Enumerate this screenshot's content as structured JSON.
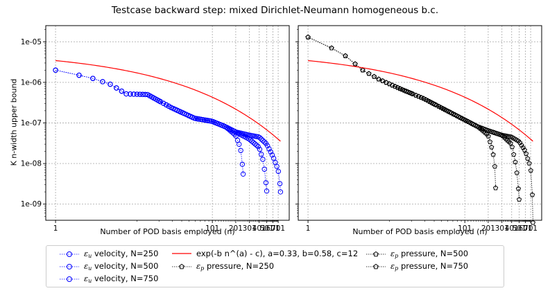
{
  "title": "Testcase backward step: mixed Dirichlet-Neumann homogeneous b.c.",
  "legend_entries": [
    {
      "eps": "ε",
      "sub": "u",
      "text": " velocity, N=250",
      "color": "#0000ff",
      "marker": "circle"
    },
    {
      "eps": "ε",
      "sub": "u",
      "text": " velocity, N=500",
      "color": "#0000ff",
      "marker": "circle"
    },
    {
      "eps": "ε",
      "sub": "u",
      "text": " velocity, N=750",
      "color": "#0000ff",
      "marker": "circle"
    },
    {
      "eps": "",
      "sub": "",
      "text": "exp(-b n^(a) - c), a=0.33, b=0.58, c=12",
      "color": "#ff0000",
      "marker": "line"
    },
    {
      "eps": "ε",
      "sub": "p",
      "text": " pressure, N=250",
      "color": "#000000",
      "marker": "pentagon"
    },
    {
      "eps": "ε",
      "sub": "p",
      "text": " pressure, N=500",
      "color": "#000000",
      "marker": "pentagon"
    },
    {
      "eps": "ε",
      "sub": "p",
      "text": " pressure, N=750",
      "color": "#000000",
      "marker": "pentagon"
    }
  ],
  "chart_data": [
    {
      "type": "line",
      "subplot": "left",
      "title": "",
      "xlabel": "Number of POD basis employed (n)",
      "ylabel": "K n-width upper bound",
      "xscale": "log",
      "yscale": "log",
      "xlim": [
        0.75,
        970
      ],
      "ylim": [
        4e-10,
        2.5e-05
      ],
      "x_ticks": [
        1,
        101,
        201,
        301,
        401,
        501,
        601,
        701
      ],
      "x_tick_labels": [
        "1",
        "101",
        "201",
        "301",
        "401",
        "501",
        "601",
        "701"
      ],
      "y_ticks": [
        1e-09,
        1e-08,
        1e-07,
        1e-06,
        1e-05
      ],
      "y_tick_labels": [
        "1e-09",
        "1e-08",
        "1e-07",
        "1e-06",
        "1e-05"
      ],
      "grid": true,
      "series": [
        {
          "name": "ε_u velocity, N=250",
          "color": "#0000ff",
          "marker": "circle",
          "N": 250,
          "control": [
            [
              1,
              2e-06
            ],
            [
              2,
              1.5e-06
            ],
            [
              3,
              1.25e-06
            ],
            [
              5,
              9e-07
            ],
            [
              8,
              5.2e-07
            ],
            [
              15,
              5e-07
            ],
            [
              30,
              2.4e-07
            ],
            [
              60,
              1.3e-07
            ],
            [
              100,
              1.1e-07
            ],
            [
              150,
              8e-08
            ],
            [
              200,
              5e-08
            ],
            [
              230,
              2.5e-08
            ],
            [
              240,
              1.4e-08
            ],
            [
              250,
              5.5e-09
            ]
          ]
        },
        {
          "name": "ε_u velocity, N=500",
          "color": "#0000ff",
          "marker": "circle",
          "N": 500,
          "control": [
            [
              1,
              2e-06
            ],
            [
              2,
              1.5e-06
            ],
            [
              3,
              1.25e-06
            ],
            [
              5,
              9e-07
            ],
            [
              8,
              5.2e-07
            ],
            [
              15,
              5e-07
            ],
            [
              30,
              2.4e-07
            ],
            [
              60,
              1.3e-07
            ],
            [
              100,
              1.1e-07
            ],
            [
              150,
              8e-08
            ],
            [
              200,
              6e-08
            ],
            [
              300,
              4e-08
            ],
            [
              400,
              2.5e-08
            ],
            [
              450,
              1.2e-08
            ],
            [
              480,
              5e-09
            ],
            [
              500,
              2.1e-09
            ]
          ]
        },
        {
          "name": "ε_u velocity, N=750",
          "color": "#0000ff",
          "marker": "circle",
          "N": 750,
          "control": [
            [
              1,
              2e-06
            ],
            [
              2,
              1.5e-06
            ],
            [
              3,
              1.25e-06
            ],
            [
              5,
              9e-07
            ],
            [
              8,
              5.2e-07
            ],
            [
              15,
              5e-07
            ],
            [
              30,
              2.4e-07
            ],
            [
              60,
              1.3e-07
            ],
            [
              100,
              1.1e-07
            ],
            [
              150,
              8e-08
            ],
            [
              200,
              6e-08
            ],
            [
              300,
              5e-08
            ],
            [
              400,
              4.5e-08
            ],
            [
              500,
              3e-08
            ],
            [
              600,
              1.5e-08
            ],
            [
              700,
              7e-09
            ],
            [
              740,
              3e-09
            ],
            [
              750,
              2e-09
            ]
          ]
        },
        {
          "name": "exp(-b n^(a) - c), a=0.33, b=0.58, c=12",
          "color": "#ff0000",
          "marker": "line",
          "formula": {
            "a": 0.33,
            "b": 0.58,
            "c": 12
          },
          "x_range": [
            1,
            750
          ]
        }
      ]
    },
    {
      "type": "line",
      "subplot": "right",
      "title": "",
      "xlabel": "Number of POD basis employed (n)",
      "ylabel": "",
      "xscale": "log",
      "yscale": "log",
      "xlim": [
        0.75,
        970
      ],
      "ylim": [
        4e-10,
        2.5e-05
      ],
      "x_ticks": [
        1,
        101,
        201,
        301,
        401,
        501,
        601,
        701
      ],
      "x_tick_labels": [
        "1",
        "101",
        "201",
        "301",
        "401",
        "501",
        "601",
        "701"
      ],
      "y_ticks": [
        1e-09,
        1e-08,
        1e-07,
        1e-06,
        1e-05
      ],
      "grid": true,
      "series": [
        {
          "name": "ε_p pressure, N=250",
          "color": "#000000",
          "marker": "pentagon",
          "N": 250,
          "control": [
            [
              1,
              1.3e-05
            ],
            [
              2,
              7e-06
            ],
            [
              3,
              4.5e-06
            ],
            [
              5,
              2e-06
            ],
            [
              8,
              1.2e-06
            ],
            [
              15,
              7e-07
            ],
            [
              30,
              4e-07
            ],
            [
              60,
              2e-07
            ],
            [
              100,
              1.2e-07
            ],
            [
              150,
              8e-08
            ],
            [
              200,
              5e-08
            ],
            [
              230,
              2e-08
            ],
            [
              245,
              8e-09
            ],
            [
              250,
              2.5e-09
            ]
          ]
        },
        {
          "name": "ε_p pressure, N=500",
          "color": "#000000",
          "marker": "pentagon",
          "N": 500,
          "control": [
            [
              1,
              1.3e-05
            ],
            [
              2,
              7e-06
            ],
            [
              3,
              4.5e-06
            ],
            [
              5,
              2e-06
            ],
            [
              8,
              1.2e-06
            ],
            [
              15,
              7e-07
            ],
            [
              30,
              4e-07
            ],
            [
              60,
              2e-07
            ],
            [
              100,
              1.2e-07
            ],
            [
              150,
              8e-08
            ],
            [
              200,
              6.5e-08
            ],
            [
              300,
              5e-08
            ],
            [
              400,
              3e-08
            ],
            [
              450,
              1e-08
            ],
            [
              480,
              4e-09
            ],
            [
              500,
              1.3e-09
            ]
          ]
        },
        {
          "name": "ε_p pressure, N=750",
          "color": "#000000",
          "marker": "pentagon",
          "N": 750,
          "control": [
            [
              1,
              1.3e-05
            ],
            [
              2,
              7e-06
            ],
            [
              3,
              4.5e-06
            ],
            [
              5,
              2e-06
            ],
            [
              8,
              1.2e-06
            ],
            [
              15,
              7e-07
            ],
            [
              30,
              4e-07
            ],
            [
              60,
              2e-07
            ],
            [
              100,
              1.2e-07
            ],
            [
              150,
              8e-08
            ],
            [
              200,
              6.5e-08
            ],
            [
              300,
              5e-08
            ],
            [
              400,
              4.5e-08
            ],
            [
              500,
              3.5e-08
            ],
            [
              600,
              2e-08
            ],
            [
              700,
              8e-09
            ],
            [
              740,
              1.5e-09
            ],
            [
              750,
              3.5e-10
            ]
          ]
        },
        {
          "name": "exp(-b n^(a) - c), a=0.33, b=0.58, c=12",
          "color": "#ff0000",
          "marker": "line",
          "formula": {
            "a": 0.33,
            "b": 0.58,
            "c": 12
          },
          "x_range": [
            1,
            750
          ]
        }
      ]
    }
  ]
}
